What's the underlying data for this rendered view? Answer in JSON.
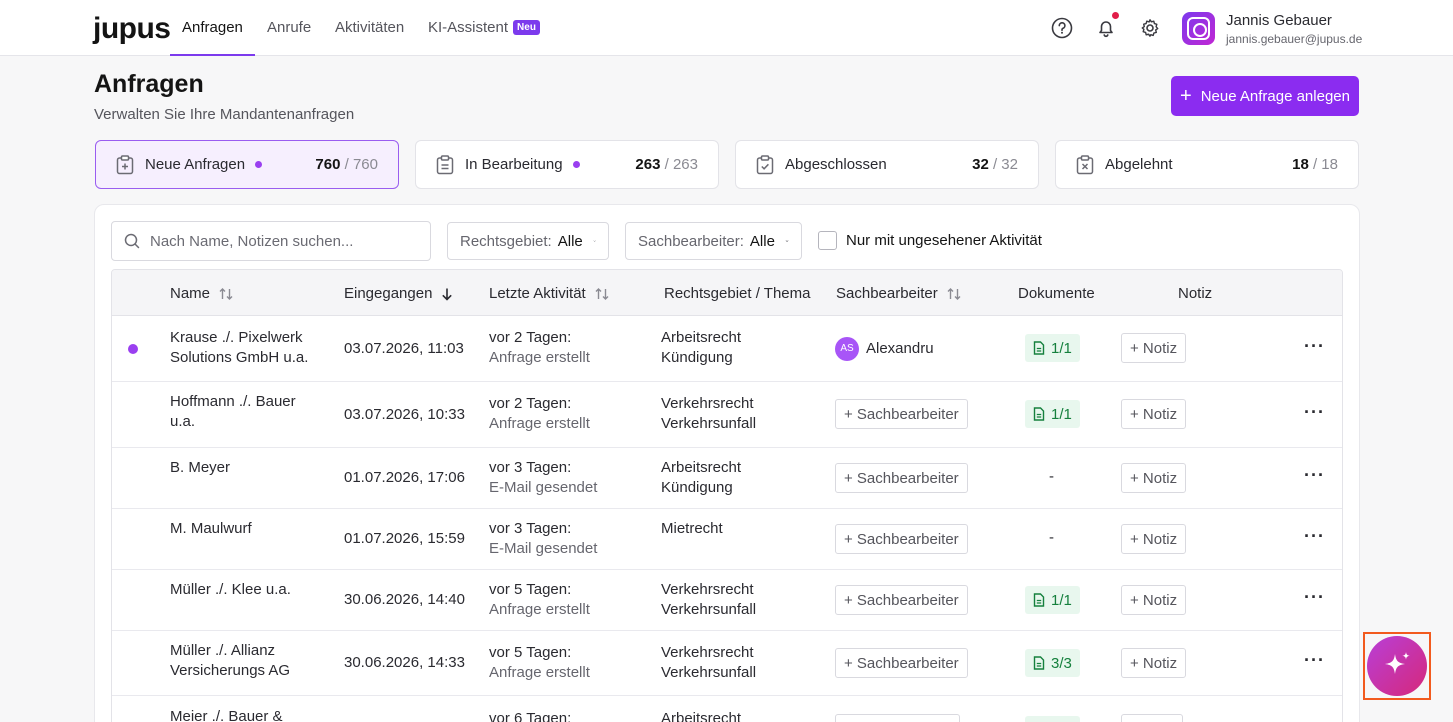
{
  "brand": "jupus",
  "nav": {
    "items": [
      "Anfragen",
      "Anrufe",
      "Aktivitäten",
      "KI-Assistent"
    ],
    "new_badge": "Neu"
  },
  "user": {
    "name": "Jannis Gebauer",
    "email": "jannis.gebauer@jupus.de"
  },
  "header": {
    "title": "Anfragen",
    "subtitle": "Verwalten Sie Ihre Mandantenanfragen",
    "new_button": "Neue Anfrage anlegen"
  },
  "status_cards": [
    {
      "label": "Neue Anfragen",
      "count": "760",
      "total": "/ 760"
    },
    {
      "label": "In Bearbeitung",
      "count": "263",
      "total": "/ 263"
    },
    {
      "label": "Abgeschlossen",
      "count": "32",
      "total": "/ 32"
    },
    {
      "label": "Abgelehnt",
      "count": "18",
      "total": "/ 18"
    }
  ],
  "filters": {
    "search_placeholder": "Nach Name, Notizen suchen...",
    "area_label": "Rechtsgebiet:",
    "area_value": "Alle",
    "clerk_label": "Sachbearbeiter:",
    "clerk_value": "Alle",
    "unseen_label": "Nur mit ungesehener Aktivität"
  },
  "table": {
    "headers": [
      "Name",
      "Eingegangen",
      "Letzte Aktivität",
      "Rechtsgebiet / Thema",
      "Sachbearbeiter",
      "Dokumente",
      "Notiz"
    ],
    "add_clerk_label": "+ Sachbearbeiter",
    "add_note_label": "+ Notiz",
    "rows": [
      {
        "name1": "Krause ./. Pixelwerk",
        "name2": "Solutions GmbH u.a.",
        "received": "03.07.2026, 11:03",
        "act1": "vor 2 Tagen:",
        "act2": "Anfrage erstellt",
        "area1": "Arbeitsrecht",
        "area2": "Kündigung",
        "assignee_initials": "AS",
        "assignee": "Alexandru",
        "docs": "1/1"
      },
      {
        "name1": "Hoffmann ./. Bauer",
        "name2": "u.a.",
        "received": "03.07.2026, 10:33",
        "act1": "vor 2 Tagen:",
        "act2": "Anfrage erstellt",
        "area1": "Verkehrsrecht",
        "area2": "Verkehrsunfall",
        "docs": "1/1"
      },
      {
        "name1": "B. Meyer",
        "name2": "",
        "received": "01.07.2026, 17:06",
        "act1": "vor 3 Tagen:",
        "act2": "E-Mail gesendet",
        "area1": "Arbeitsrecht",
        "area2": "Kündigung",
        "docs": "-"
      },
      {
        "name1": "M. Maulwurf",
        "name2": "",
        "received": "01.07.2026, 15:59",
        "act1": "vor 3 Tagen:",
        "act2": "E-Mail gesendet",
        "area1": "Mietrecht",
        "area2": "",
        "docs": "-"
      },
      {
        "name1": "Müller ./. Klee u.a.",
        "name2": "",
        "received": "30.06.2026, 14:40",
        "act1": "vor 5 Tagen:",
        "act2": "Anfrage erstellt",
        "area1": "Verkehrsrecht",
        "area2": "Verkehrsunfall",
        "docs": "1/1"
      },
      {
        "name1": "Müller ./. Allianz",
        "name2": "Versicherungs AG",
        "received": "30.06.2026, 14:33",
        "act1": "vor 5 Tagen:",
        "act2": "Anfrage erstellt",
        "area1": "Verkehrsrecht",
        "area2": "Verkehrsunfall",
        "docs": "3/3"
      },
      {
        "name1": "Meier ./. Bauer &",
        "name2": "",
        "received": "",
        "act1": "vor 6 Tagen:",
        "act2": "",
        "area1": "Arbeitsrecht",
        "area2": "",
        "docs": ""
      }
    ]
  },
  "colors": {
    "accent": "#8b2cf0",
    "success": "#15803d"
  }
}
